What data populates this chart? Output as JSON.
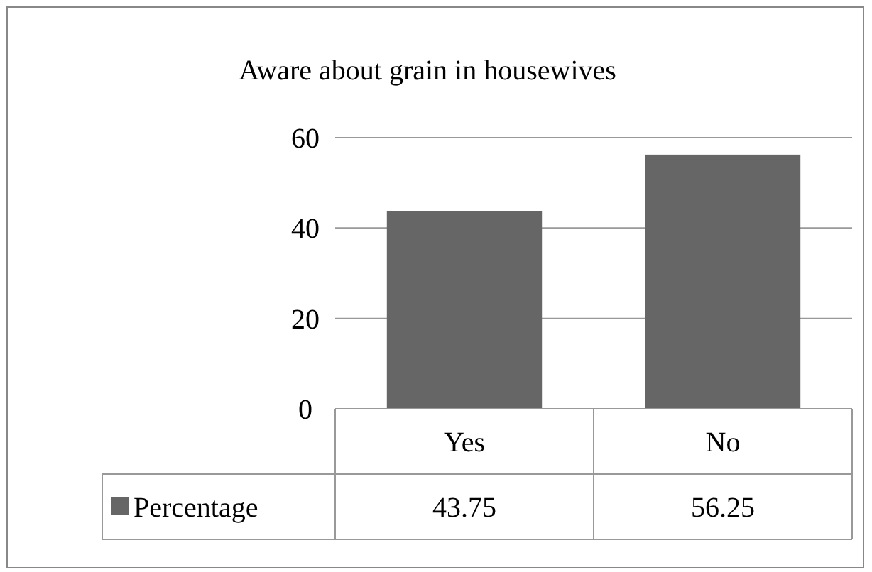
{
  "chart_data": {
    "type": "bar",
    "title": "Aware about grain in housewives",
    "categories": [
      "Yes",
      "No"
    ],
    "series": [
      {
        "name": "Percentage",
        "color": "#666666",
        "values": [
          43.75,
          56.25
        ]
      }
    ],
    "ylim": [
      0,
      60
    ],
    "yticks": [
      0,
      20,
      40,
      60
    ],
    "grid": "y",
    "data_labels": true,
    "legend": "bottom"
  }
}
